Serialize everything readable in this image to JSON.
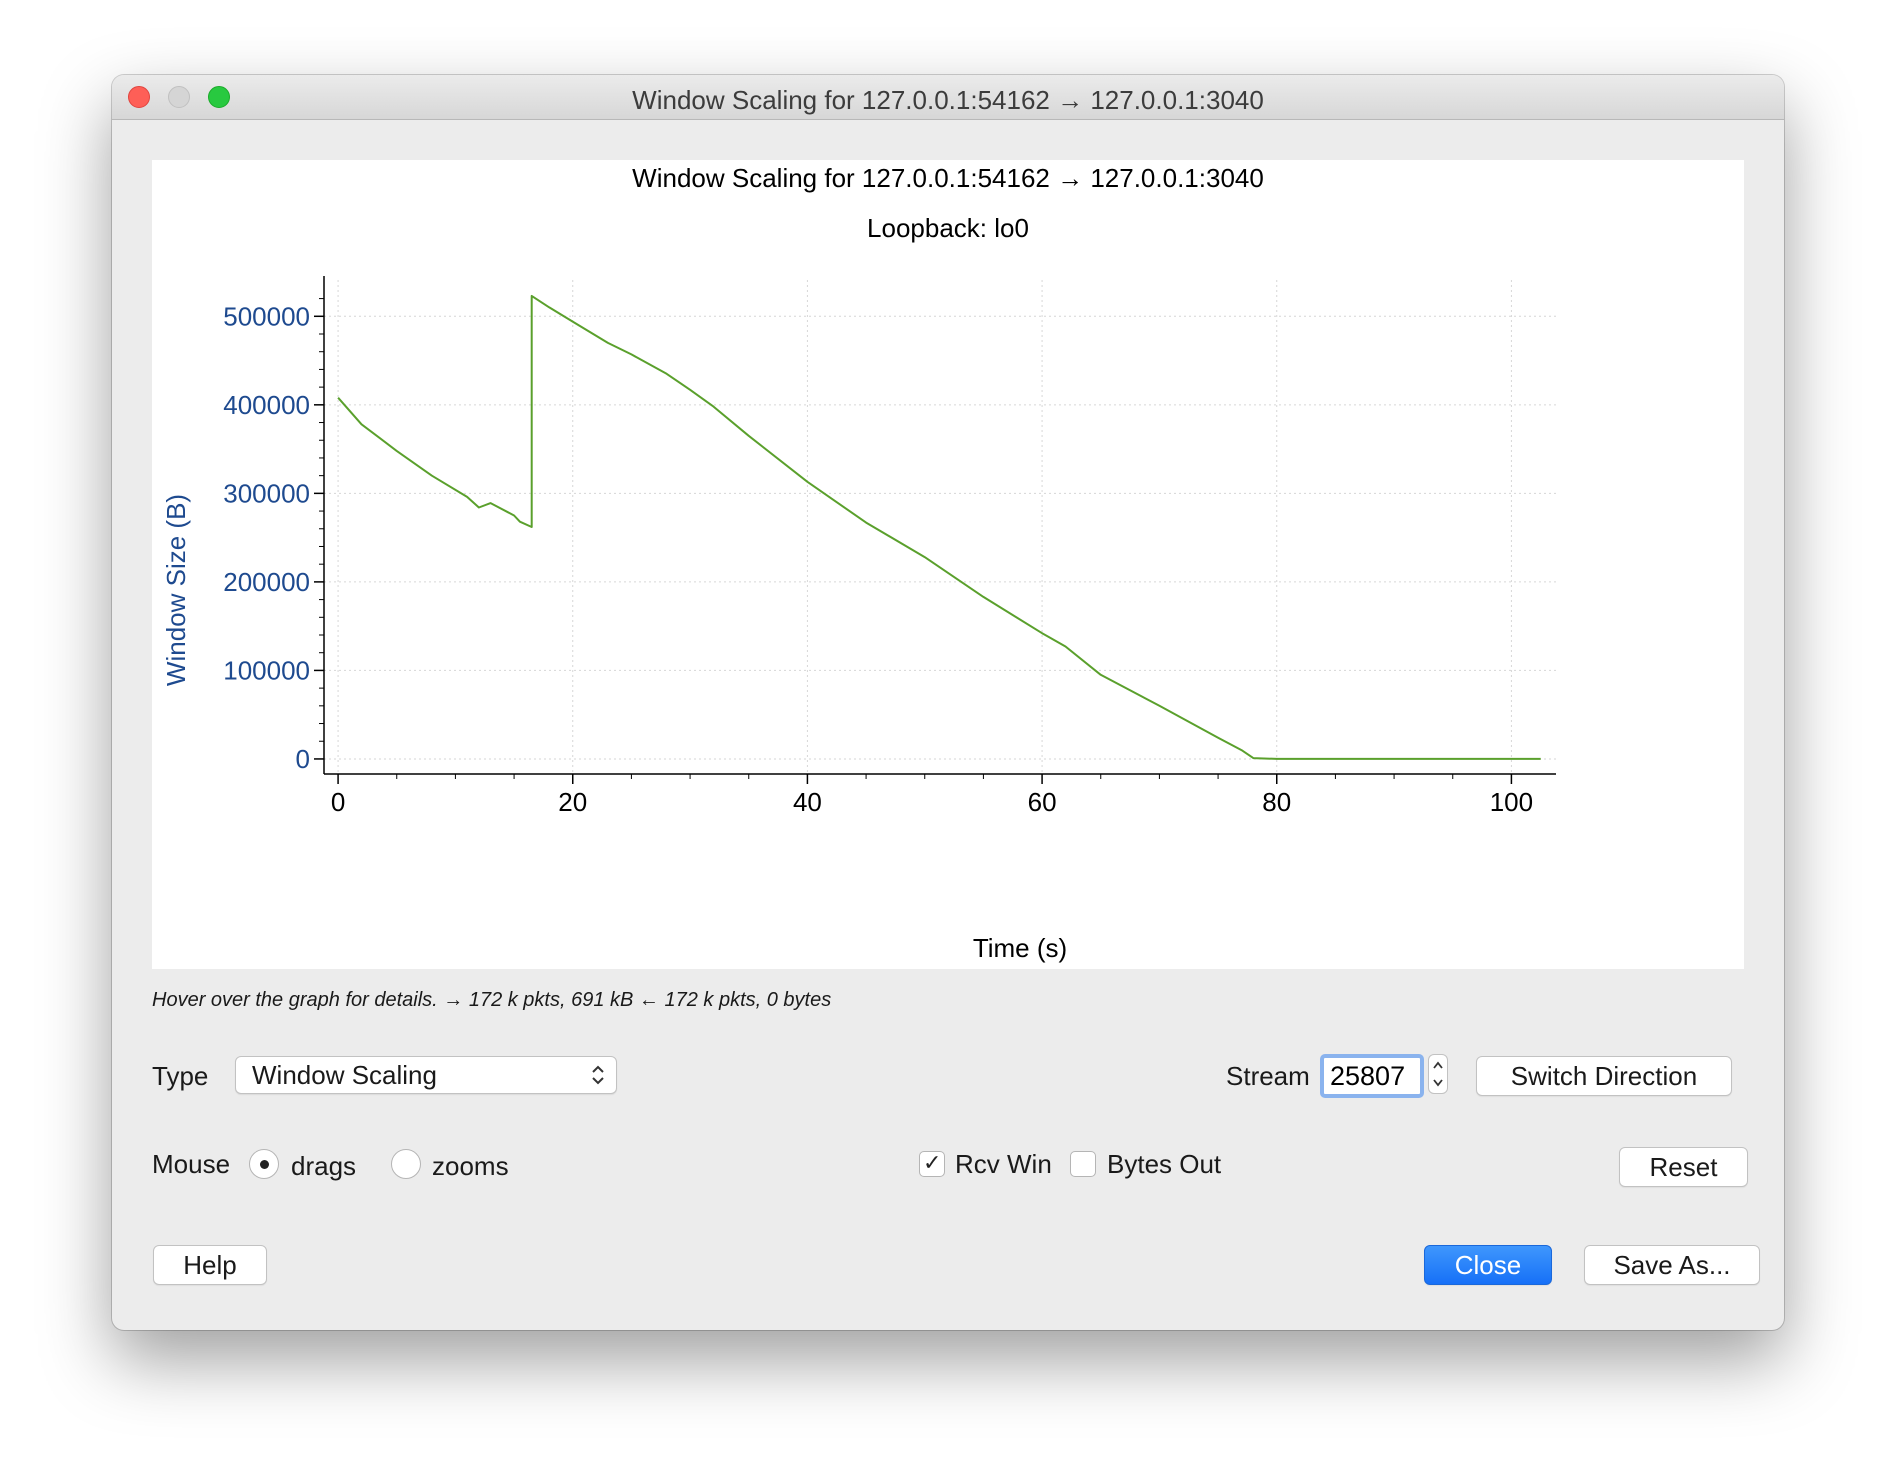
{
  "window": {
    "title": "Window Scaling for 127.0.0.1:54162 → 127.0.0.1:3040"
  },
  "chart_data": {
    "type": "line",
    "title": "Window Scaling for 127.0.0.1:54162 → 127.0.0.1:3040",
    "subtitle": "Loopback: lo0",
    "xlabel": "Time (s)",
    "ylabel": "Window Size (B)",
    "xlim": [
      -1.2,
      103.8
    ],
    "ylim": [
      -17000,
      541000
    ],
    "xticks": [
      "0",
      "20",
      "40",
      "60",
      "80",
      "100"
    ],
    "yticks": [
      "0",
      "100000",
      "200000",
      "300000",
      "400000",
      "500000"
    ],
    "grid": true,
    "color": "#5aa02c",
    "series": [
      {
        "x": [
          0.0,
          2.0,
          5.0,
          8.0,
          11.0,
          12.0,
          13.0,
          15.0,
          15.5,
          16.5,
          16.5,
          18.0,
          20.0,
          23.0,
          25.0,
          28.0,
          30.0,
          32.0,
          35.0,
          40.0,
          45.0,
          50.0,
          55.0,
          60.0,
          62.0,
          65.0,
          70.0,
          75.0,
          77.0,
          78.0,
          80.0,
          90.0,
          100.0,
          102.5
        ],
        "y": [
          408000,
          378000,
          348000,
          320000,
          296000,
          284000,
          289000,
          275000,
          268000,
          262000,
          523000,
          510000,
          494000,
          470000,
          457000,
          435000,
          417000,
          398000,
          365000,
          313000,
          267000,
          228000,
          183000,
          142000,
          127000,
          95000,
          60000,
          24000,
          10000,
          1000,
          0,
          0,
          0,
          0
        ]
      }
    ]
  },
  "status": {
    "hint": "Hover over the graph for details. → 172 k pkts, 691 kB ← 172 k pkts, 0 bytes"
  },
  "controls": {
    "type_label": "Type",
    "type_value": "Window Scaling",
    "stream_label": "Stream",
    "stream_value": "25807",
    "switch_direction": "Switch Direction",
    "mouse_label": "Mouse",
    "radio_drags": "drags",
    "radio_drags_selected": true,
    "radio_zooms": "zooms",
    "radio_zooms_selected": false,
    "rcv_win": "Rcv Win",
    "rcv_win_checked": true,
    "bytes_out": "Bytes Out",
    "bytes_out_checked": false,
    "reset": "Reset",
    "help": "Help",
    "close": "Close",
    "save_as": "Save As..."
  }
}
